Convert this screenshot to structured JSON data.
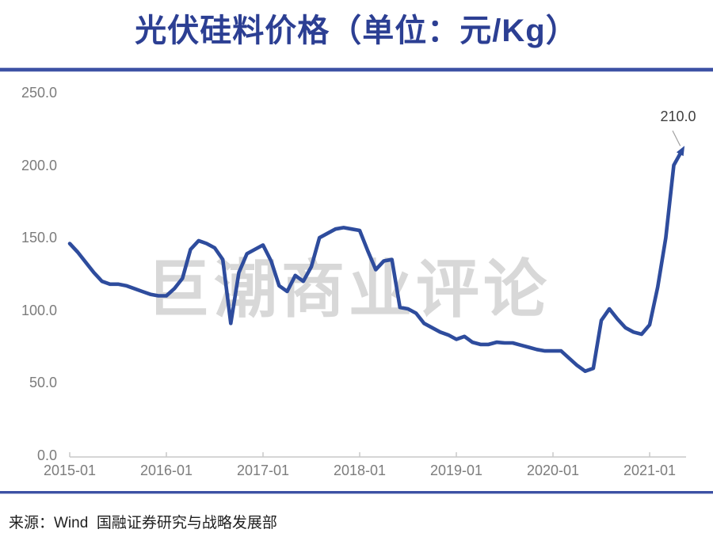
{
  "title": "光伏硅料价格（单位：元/Kg）",
  "watermark": "巨潮商业评论",
  "source": "来源：Wind  国融证券研究与战略发展部",
  "colors": {
    "line": "#2E4C9D",
    "title_blue": "#2C3F93",
    "divider_blue": "#3C51A4",
    "axis_gray": "#C9C9C9",
    "tick_text_gray": "#7C7C7C",
    "watermark_gray": "#D8D8D8",
    "leader_gray": "#A0A0A0"
  },
  "chart_data": {
    "type": "line",
    "title": "光伏硅料价格（单位： 元/Kg）",
    "unit": "元/Kg",
    "grid": false,
    "legend": "none",
    "ylim": [
      0,
      250
    ],
    "y_ticks": [
      {
        "value": 0,
        "label": "0.0"
      },
      {
        "value": 50,
        "label": "50.0"
      },
      {
        "value": 100,
        "label": "100.0"
      },
      {
        "value": 150,
        "label": "150.0"
      },
      {
        "value": 200,
        "label": "200.0"
      },
      {
        "value": 250,
        "label": "250.0"
      }
    ],
    "x_tick_labels": [
      "2015-01",
      "2016-01",
      "2017-01",
      "2018-01",
      "2019-01",
      "2020-01",
      "2021-01"
    ],
    "last_point_label": "210.0",
    "x": [
      "2015-01",
      "2015-02",
      "2015-03",
      "2015-04",
      "2015-05",
      "2015-06",
      "2015-07",
      "2015-08",
      "2015-09",
      "2015-10",
      "2015-11",
      "2015-12",
      "2016-01",
      "2016-02",
      "2016-03",
      "2016-04",
      "2016-05",
      "2016-06",
      "2016-07",
      "2016-08",
      "2016-09",
      "2016-10",
      "2016-11",
      "2016-12",
      "2017-01",
      "2017-02",
      "2017-03",
      "2017-04",
      "2017-05",
      "2017-06",
      "2017-07",
      "2017-08",
      "2017-09",
      "2017-10",
      "2017-11",
      "2017-12",
      "2018-01",
      "2018-02",
      "2018-03",
      "2018-04",
      "2018-05",
      "2018-06",
      "2018-07",
      "2018-08",
      "2018-09",
      "2018-10",
      "2018-11",
      "2018-12",
      "2019-01",
      "2019-02",
      "2019-03",
      "2019-04",
      "2019-05",
      "2019-06",
      "2019-07",
      "2019-08",
      "2019-09",
      "2019-10",
      "2019-11",
      "2019-12",
      "2020-01",
      "2020-02",
      "2020-03",
      "2020-04",
      "2020-05",
      "2020-06",
      "2020-07",
      "2020-08",
      "2020-09",
      "2020-10",
      "2020-11",
      "2020-12",
      "2021-01",
      "2021-02",
      "2021-03",
      "2021-04",
      "2021-05"
    ],
    "values": [
      146,
      140,
      133,
      126,
      120,
      118,
      118,
      117,
      115,
      113,
      111,
      110,
      110,
      115,
      122,
      142,
      148,
      146,
      143,
      135,
      91,
      126,
      139,
      142,
      145,
      134,
      117,
      113,
      124,
      120,
      130,
      150,
      153,
      156,
      157,
      156,
      155,
      141,
      128,
      134,
      135,
      102,
      101,
      98,
      91,
      88,
      85,
      83,
      80,
      82,
      78,
      76.5,
      76.5,
      78,
      77.5,
      77.5,
      76,
      74.5,
      73,
      72,
      72,
      72,
      67,
      62,
      58,
      60,
      93,
      101,
      94,
      88,
      85,
      83.5,
      90,
      116,
      150,
      200,
      210
    ]
  }
}
